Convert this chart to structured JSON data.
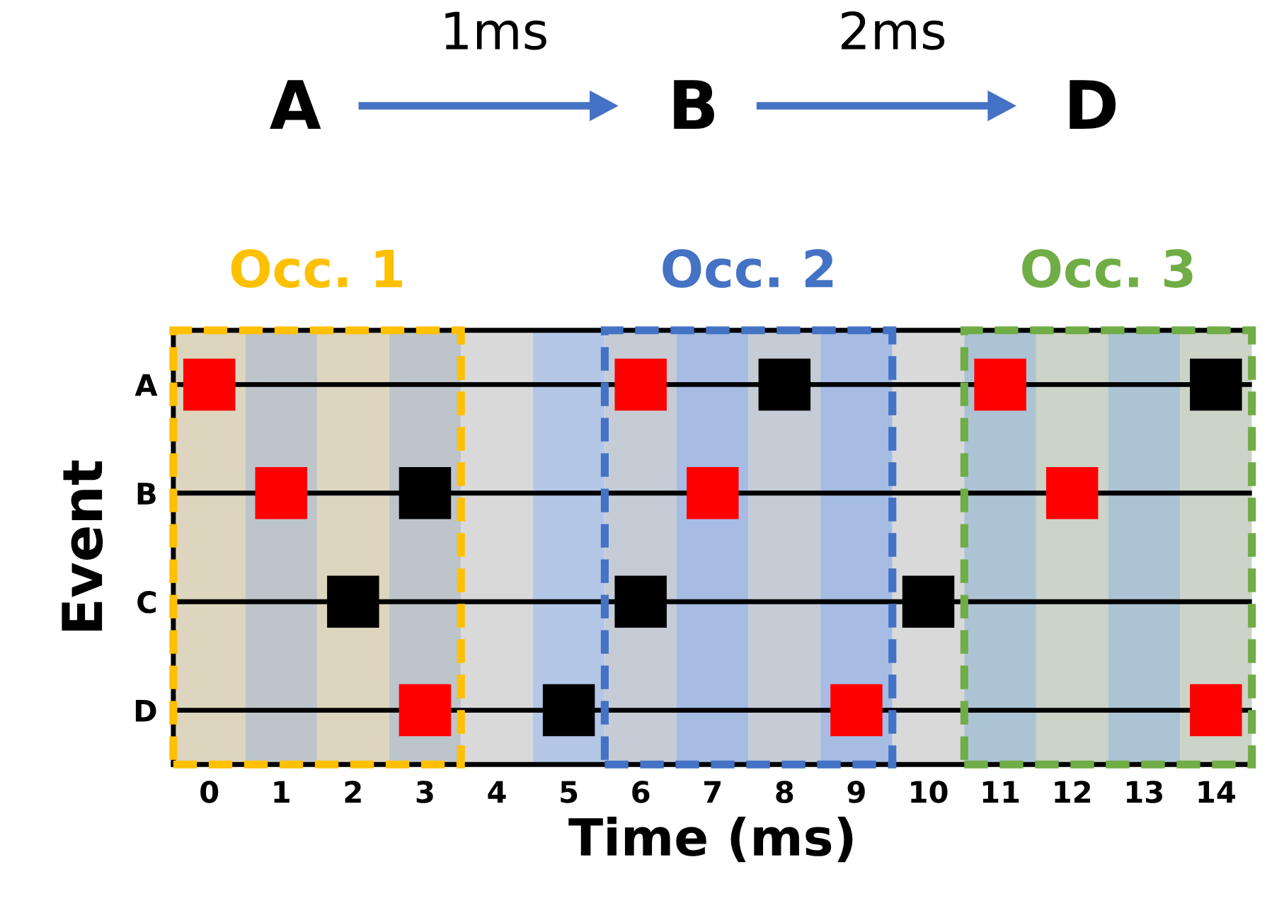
{
  "chart_data": {
    "type": "scatter",
    "orientation": "horizontal",
    "annotations": [
      "A",
      "1ms",
      "B",
      "2ms",
      "D"
    ],
    "xlabel": "Time (ms)",
    "ylabel": "Event",
    "xlim": [
      -0.5,
      14.5
    ],
    "xticks": [
      0,
      1,
      2,
      3,
      4,
      5,
      6,
      7,
      8,
      9,
      10,
      11,
      12,
      13,
      14
    ],
    "categories": [
      "A",
      "B",
      "C",
      "D"
    ],
    "grid": "y",
    "marker": "square",
    "series": [
      {
        "color": "#ff0000",
        "values": [
          0,
          1,
          null,
          3
        ]
      },
      {
        "color": "#ff0000",
        "values": [
          6,
          7,
          null,
          9
        ]
      },
      {
        "color": "#ff0000",
        "values": [
          11,
          12,
          null,
          14
        ]
      },
      {
        "color": "#000000",
        "values": [
          8,
          3,
          2,
          5
        ]
      },
      {
        "color": "#000000",
        "values": [
          14,
          null,
          6,
          null
        ]
      },
      {
        "color": "#000000",
        "values": [
          null,
          null,
          10,
          null
        ]
      }
    ],
    "bands": [
      {
        "axis": "x",
        "from": -0.5,
        "to": 0.5,
        "color": "#d9d9d9"
      },
      {
        "axis": "x",
        "from": 0.5,
        "to": 1.5,
        "color": "#b4c7e7"
      },
      {
        "axis": "x",
        "from": 1.5,
        "to": 2.5,
        "color": "#d9d9d9"
      },
      {
        "axis": "x",
        "from": 2.5,
        "to": 3.5,
        "color": "#b4c7e7"
      },
      {
        "axis": "x",
        "from": 3.5,
        "to": 4.5,
        "color": "#d9d9d9"
      },
      {
        "axis": "x",
        "from": 4.5,
        "to": 5.5,
        "color": "#b4c7e7"
      },
      {
        "axis": "x",
        "from": 5.5,
        "to": 6.5,
        "color": "#d9d9d9"
      },
      {
        "axis": "x",
        "from": 6.5,
        "to": 7.5,
        "color": "#b4c7e7"
      },
      {
        "axis": "x",
        "from": 7.5,
        "to": 8.5,
        "color": "#d9d9d9"
      },
      {
        "axis": "x",
        "from": 8.5,
        "to": 9.5,
        "color": "#b4c7e7"
      },
      {
        "axis": "x",
        "from": 9.5,
        "to": 10.5,
        "color": "#d9d9d9"
      },
      {
        "axis": "x",
        "from": 10.5,
        "to": 11.5,
        "color": "#b4c7e7"
      },
      {
        "axis": "x",
        "from": 11.5,
        "to": 12.5,
        "color": "#d9d9d9"
      },
      {
        "axis": "x",
        "from": 12.5,
        "to": 13.5,
        "color": "#b4c7e7"
      },
      {
        "axis": "x",
        "from": 13.5,
        "to": 14.5,
        "color": "#d9d9d9"
      },
      {
        "axis": "x",
        "from": -0.5,
        "to": 3.5,
        "label": "Occ. 1",
        "color": "#ffc000"
      },
      {
        "axis": "x",
        "from": 5.5,
        "to": 9.5,
        "label": "Occ. 2",
        "color": "#4472c4"
      },
      {
        "axis": "x",
        "from": 10.5,
        "to": 14.5,
        "label": "Occ. 3",
        "color": "#70ad47"
      }
    ]
  }
}
